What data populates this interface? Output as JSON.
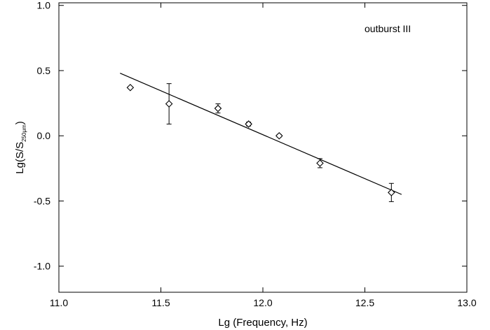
{
  "chart_data": {
    "type": "scatter",
    "title": "",
    "annotation": "outburst III",
    "xlabel": "Lg (Frequency, Hz)",
    "ylabel": {
      "main": "Lg(S/S",
      "subscript": "250μm",
      "close": ")"
    },
    "xlim": [
      11.0,
      13.0
    ],
    "ylim": [
      -1.2,
      1.02
    ],
    "xticks": [
      11.0,
      11.5,
      12.0,
      12.5,
      13.0
    ],
    "xtick_labels": [
      "11.0",
      "11.5",
      "12.0",
      "12.5",
      "13.0"
    ],
    "yticks": [
      1.0,
      0.5,
      0.0,
      -0.5,
      -1.0
    ],
    "ytick_labels": [
      "1.0",
      "0.5",
      "0.0",
      "-0.5",
      "-1.0"
    ],
    "grid": false,
    "points": [
      {
        "x": 11.35,
        "y": 0.37,
        "err": 0
      },
      {
        "x": 11.54,
        "y": 0.245,
        "err": 0.155
      },
      {
        "x": 11.78,
        "y": 0.21,
        "err": 0.035
      },
      {
        "x": 11.93,
        "y": 0.09,
        "err": 0.015
      },
      {
        "x": 12.08,
        "y": 0.0,
        "err": 0.01
      },
      {
        "x": 12.28,
        "y": -0.21,
        "err": 0.035
      },
      {
        "x": 12.63,
        "y": -0.435,
        "err": 0.07
      }
    ],
    "fit_line": {
      "x": [
        11.3,
        12.68
      ],
      "y": [
        0.48,
        -0.45
      ]
    },
    "colors": {
      "line": "#000000",
      "marker": "#000000",
      "background": "#ffffff"
    }
  }
}
